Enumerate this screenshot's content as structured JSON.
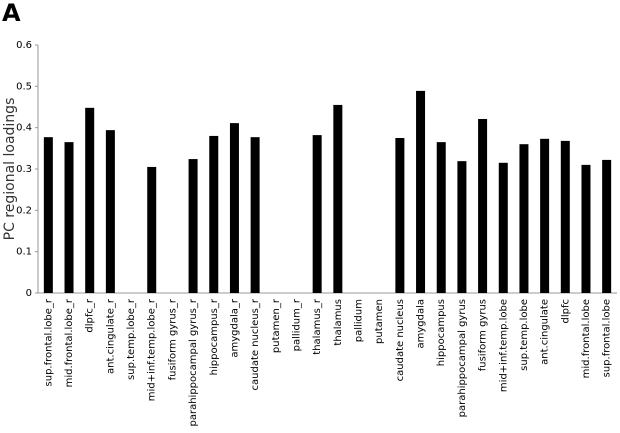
{
  "chart_data": {
    "type": "bar",
    "panel_label": "A",
    "y_label": "PC regional loadings",
    "categories": [
      "sup.frontal.lobe_r",
      "mid.frontal.lobe_r",
      "dlpfc_r",
      "ant.cingulate_r",
      "sup.temp.lobe_r",
      "mid+inf.temp.lobe_r",
      "fusiform gyrus_r",
      "parahippocampal gyrus_r",
      "hippocampus_r",
      "amygdala_r",
      "caudate nucleus_r",
      "putamen_r",
      "pallidum_r",
      "thalamus_r",
      "thalamus",
      "pallidum",
      "putamen",
      "caudate nucleus",
      "amygdala",
      "hippocampus",
      "parahippocampal gyrus",
      "fusiform gyrus",
      "mid+inf.temp.lobe",
      "sup.temp.lobe",
      "ant.cingulate",
      "dlpfc",
      "mid.frontal.lobe",
      "sup.frontal.lobe"
    ],
    "values": [
      0.377,
      0.365,
      0.448,
      0.394,
      null,
      0.305,
      null,
      0.324,
      0.38,
      0.411,
      0.377,
      null,
      null,
      0.382,
      0.455,
      null,
      null,
      0.375,
      0.489,
      0.365,
      0.319,
      0.421,
      0.315,
      0.36,
      0.373,
      0.368,
      0.31,
      0.322
    ],
    "color": "#000000",
    "ylim": [
      0,
      0.6
    ],
    "yticks": [
      0,
      0.1,
      0.2,
      0.3,
      0.4,
      0.5,
      0.6
    ],
    "grid": false
  }
}
